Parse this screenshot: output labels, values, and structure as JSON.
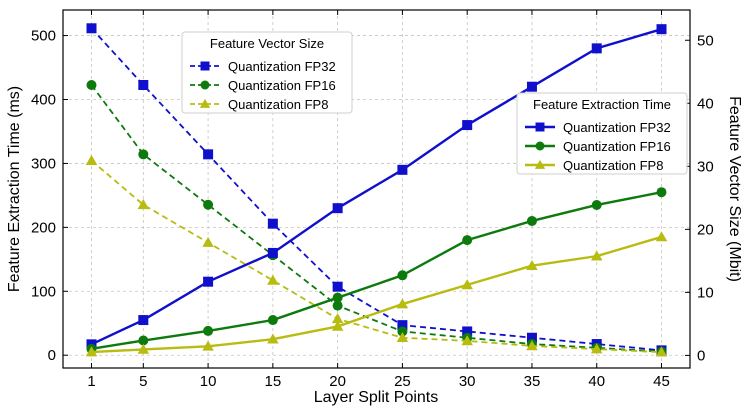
{
  "chart_data": {
    "type": "line",
    "title": "",
    "xlabel": "Layer Split Points",
    "ylabel_left": "Feature Extraction Time (ms)",
    "ylabel_right": "Feature Vector Size (Mbit)",
    "x": [
      1,
      5,
      10,
      15,
      20,
      25,
      30,
      35,
      40,
      45
    ],
    "x_ticks": [
      "1",
      "5",
      "10",
      "15",
      "20",
      "25",
      "30",
      "35",
      "40",
      "45"
    ],
    "ylim_left": [
      -20,
      540
    ],
    "ylim_right": [
      -2.0,
      54.8
    ],
    "yticks_left": [
      "0",
      "100",
      "200",
      "300",
      "400",
      "500"
    ],
    "yticks_right": [
      "0",
      "10",
      "20",
      "30",
      "40",
      "50"
    ],
    "grid": true,
    "legend_size": {
      "title": "Feature Vector Size",
      "placement": "top-center",
      "entries": [
        "Quantization FP32",
        "Quantization FP16",
        "Quantization FP8"
      ]
    },
    "legend_time": {
      "title": "Feature Extraction Time",
      "placement": "upper-right",
      "entries": [
        "Quantization FP32",
        "Quantization FP16",
        "Quantization FP8"
      ]
    },
    "series_time": [
      {
        "name": "Quantization FP32",
        "axis": "left",
        "color": "#1010cc",
        "marker": "square",
        "linestyle": "solid",
        "values": [
          17,
          55,
          115,
          160,
          230,
          290,
          360,
          420,
          480,
          510
        ]
      },
      {
        "name": "Quantization FP16",
        "axis": "left",
        "color": "#0c7a0c",
        "marker": "circle",
        "linestyle": "solid",
        "values": [
          10,
          23,
          38,
          55,
          90,
          125,
          180,
          210,
          235,
          255
        ]
      },
      {
        "name": "Quantization FP8",
        "axis": "left",
        "color": "#b8bc10",
        "marker": "triangle",
        "linestyle": "solid",
        "values": [
          5,
          9,
          14,
          25,
          45,
          80,
          110,
          140,
          155,
          185
        ]
      }
    ],
    "series_size": [
      {
        "name": "Quantization FP32",
        "axis": "right",
        "color": "#1010cc",
        "marker": "square",
        "linestyle": "dashed",
        "values": [
          51.9,
          42.9,
          31.9,
          20.9,
          10.9,
          4.8,
          3.8,
          2.8,
          1.8,
          0.8
        ]
      },
      {
        "name": "Quantization FP16",
        "axis": "right",
        "color": "#0c7a0c",
        "marker": "circle",
        "linestyle": "dashed",
        "values": [
          42.9,
          31.9,
          23.9,
          15.9,
          7.9,
          3.8,
          2.8,
          1.8,
          1.2,
          0.6
        ]
      },
      {
        "name": "Quantization FP8",
        "axis": "right",
        "color": "#b8bc10",
        "marker": "triangle",
        "linestyle": "dashed",
        "values": [
          30.9,
          23.9,
          17.9,
          11.9,
          5.8,
          2.8,
          2.3,
          1.5,
          1.0,
          0.5
        ]
      }
    ]
  }
}
